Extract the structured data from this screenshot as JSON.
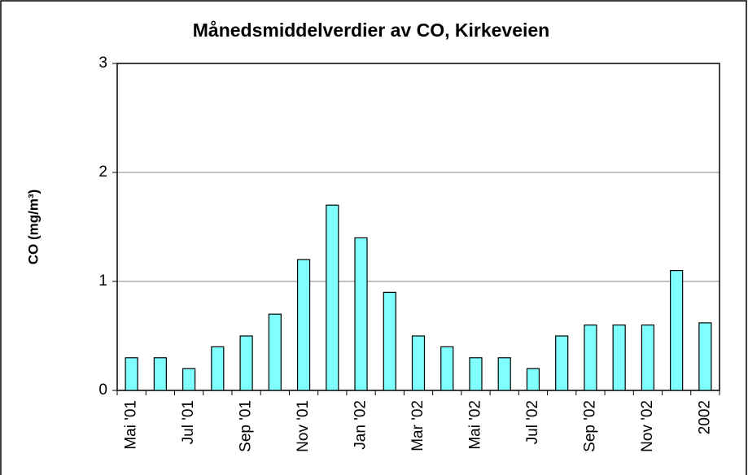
{
  "chart_data": {
    "type": "bar",
    "title": "Månedsmiddelverdier av CO, Kirkeveien",
    "y_label": "CO (mg/m³)",
    "categories": [
      "Mai '01",
      null,
      "Jul '01",
      null,
      "Sep '01",
      null,
      "Nov '01",
      null,
      "Jan '02",
      null,
      "Mar '02",
      null,
      "Mai '02",
      null,
      "Jul '02",
      null,
      "Sep '02",
      null,
      "Nov '02",
      null,
      "2002"
    ],
    "values": [
      0.3,
      0.3,
      0.2,
      0.4,
      0.5,
      0.7,
      1.2,
      1.7,
      1.4,
      0.9,
      0.5,
      0.4,
      0.3,
      0.3,
      0.2,
      0.5,
      0.6,
      0.6,
      0.6,
      1.1,
      0.62
    ],
    "color": "#80ffff",
    "ylim": [
      0,
      3
    ],
    "yticks": [
      0,
      1,
      2,
      3
    ],
    "grid": true
  }
}
